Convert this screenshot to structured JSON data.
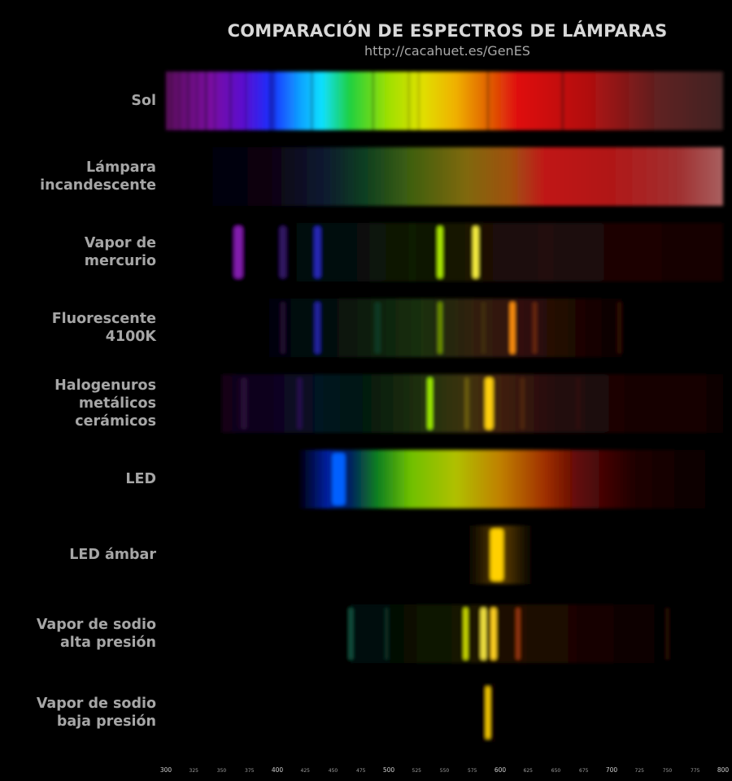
{
  "header": {
    "title": "COMPARACIÓN DE ESPECTROS DE LÁMPARAS",
    "subtitle": "http://cacahuet.es/GenES"
  },
  "axis": {
    "min": 300,
    "max": 800,
    "ticks": [
      300,
      325,
      350,
      375,
      400,
      425,
      450,
      475,
      500,
      525,
      550,
      575,
      600,
      625,
      650,
      675,
      700,
      725,
      750,
      775,
      800
    ],
    "major_ticks": [
      300,
      400,
      500,
      600,
      700,
      800
    ]
  },
  "colors": {
    "background": "#000000",
    "label": "#a6a6a6",
    "title": "#d8d8d8"
  },
  "spectra": [
    {
      "id": "sol",
      "label": [
        "Sol"
      ],
      "band": [
        300,
        800
      ],
      "gradient": [
        [
          300,
          "#5a0a5a"
        ],
        [
          340,
          "#7a10a0"
        ],
        [
          370,
          "#5a10d0"
        ],
        [
          395,
          "#1830ff"
        ],
        [
          420,
          "#10a0ff"
        ],
        [
          440,
          "#10e0ff"
        ],
        [
          465,
          "#20d040"
        ],
        [
          500,
          "#a0e000"
        ],
        [
          530,
          "#e0e000"
        ],
        [
          560,
          "#f0b000"
        ],
        [
          590,
          "#e06000"
        ],
        [
          615,
          "#e01010"
        ],
        [
          680,
          "#b01010"
        ],
        [
          740,
          "#602020"
        ],
        [
          800,
          "#402020"
        ]
      ],
      "lines": [
        {
          "wl": 305,
          "w": 1,
          "dark": true
        },
        {
          "wl": 312,
          "w": 1,
          "dark": true
        },
        {
          "wl": 320,
          "w": 1.5,
          "dark": true
        },
        {
          "wl": 328,
          "w": 1,
          "dark": true
        },
        {
          "wl": 336,
          "w": 2,
          "dark": true
        },
        {
          "wl": 344,
          "w": 1,
          "dark": true
        },
        {
          "wl": 358,
          "w": 1.5,
          "dark": true
        },
        {
          "wl": 372,
          "w": 1,
          "dark": true
        },
        {
          "wl": 394,
          "w": 2,
          "dark": true
        },
        {
          "wl": 397,
          "w": 1.5,
          "dark": true
        },
        {
          "wl": 431,
          "w": 1.5,
          "dark": true
        },
        {
          "wl": 486,
          "w": 1.5,
          "dark": true
        },
        {
          "wl": 518,
          "w": 1,
          "dark": true
        },
        {
          "wl": 527,
          "w": 1,
          "dark": true
        },
        {
          "wl": 589,
          "w": 1.5,
          "dark": true
        },
        {
          "wl": 656,
          "w": 2,
          "dark": true
        }
      ]
    },
    {
      "id": "incandescente",
      "label": [
        "Lámpara",
        "incandescente"
      ],
      "band": [
        300,
        800
      ],
      "gradient": [
        [
          300,
          "#000000"
        ],
        [
          390,
          "#08000e"
        ],
        [
          440,
          "#081830"
        ],
        [
          480,
          "#104020"
        ],
        [
          520,
          "#406010"
        ],
        [
          570,
          "#806808"
        ],
        [
          610,
          "#a05010"
        ],
        [
          640,
          "#c01818"
        ],
        [
          700,
          "#b01818"
        ],
        [
          760,
          "#a03030"
        ],
        [
          800,
          "#a86060"
        ]
      ],
      "lines": []
    },
    {
      "id": "mercurio",
      "label": [
        "Vapor de",
        "mercurio"
      ],
      "band": [
        355,
        800
      ],
      "gradient": [
        [
          355,
          "#040004"
        ],
        [
          450,
          "#050a08"
        ],
        [
          520,
          "#0a1a06"
        ],
        [
          570,
          "#1a1406"
        ],
        [
          640,
          "#200808"
        ],
        [
          720,
          "#1c0606"
        ],
        [
          800,
          "#140404"
        ]
      ],
      "lines": [
        {
          "wl": 365,
          "w": 10,
          "color": "#9020c0",
          "a": 0.9
        },
        {
          "wl": 405,
          "w": 8,
          "color": "#5020a0",
          "a": 0.6
        },
        {
          "wl": 436,
          "w": 8,
          "color": "#3030e0",
          "a": 0.8
        },
        {
          "wl": 546,
          "w": 6,
          "color": "#b0f000",
          "a": 1
        },
        {
          "wl": 578,
          "w": 7,
          "color": "#f8f040",
          "a": 1
        }
      ]
    },
    {
      "id": "fluorescente",
      "label": [
        "Fluorescente",
        "4100K"
      ],
      "band": [
        360,
        720
      ],
      "gradient": [
        [
          360,
          "#000000"
        ],
        [
          440,
          "#050a10"
        ],
        [
          485,
          "#0a2008"
        ],
        [
          530,
          "#1a3008"
        ],
        [
          575,
          "#302008"
        ],
        [
          620,
          "#301008"
        ],
        [
          680,
          "#180404"
        ],
        [
          720,
          "#000000"
        ]
      ],
      "lines": [
        {
          "wl": 405,
          "w": 6,
          "color": "#301040",
          "a": 0.7
        },
        {
          "wl": 436,
          "w": 7,
          "color": "#2828c0",
          "a": 0.8
        },
        {
          "wl": 490,
          "w": 8,
          "color": "#104830",
          "a": 0.6
        },
        {
          "wl": 546,
          "w": 5,
          "color": "#90c000",
          "a": 0.7
        },
        {
          "wl": 585,
          "w": 4,
          "color": "#504010",
          "a": 0.6
        },
        {
          "wl": 611,
          "w": 6,
          "color": "#ff9010",
          "a": 1
        },
        {
          "wl": 631,
          "w": 5,
          "color": "#803008",
          "a": 0.7
        },
        {
          "wl": 707,
          "w": 5,
          "color": "#401008",
          "a": 0.7
        }
      ]
    },
    {
      "id": "halogenuros",
      "label": [
        "Halogenuros",
        "metálicos",
        "cerámicos"
      ],
      "band": [
        350,
        800
      ],
      "gradient": [
        [
          350,
          "#120418"
        ],
        [
          400,
          "#100420"
        ],
        [
          440,
          "#041420"
        ],
        [
          480,
          "#041a10"
        ],
        [
          530,
          "#203008"
        ],
        [
          575,
          "#403008"
        ],
        [
          600,
          "#402008"
        ],
        [
          650,
          "#240808"
        ],
        [
          720,
          "#180606"
        ],
        [
          800,
          "#100404"
        ]
      ],
      "lines": [
        {
          "wl": 370,
          "w": 8,
          "color": "#301040",
          "a": 0.7
        },
        {
          "wl": 420,
          "w": 6,
          "color": "#301060",
          "a": 0.7
        },
        {
          "wl": 537,
          "w": 6,
          "color": "#a0f000",
          "a": 1
        },
        {
          "wl": 570,
          "w": 5,
          "color": "#807010",
          "a": 0.7
        },
        {
          "wl": 590,
          "w": 10,
          "color": "#ffd010",
          "a": 1
        },
        {
          "wl": 620,
          "w": 5,
          "color": "#603010",
          "a": 0.6
        },
        {
          "wl": 670,
          "w": 4,
          "color": "#401008",
          "a": 0.6
        }
      ]
    },
    {
      "id": "led",
      "label": [
        "LED"
      ],
      "band": [
        420,
        800
      ],
      "gradient": [
        [
          420,
          "#000010"
        ],
        [
          445,
          "#0020a0"
        ],
        [
          465,
          "#002060"
        ],
        [
          490,
          "#108020"
        ],
        [
          520,
          "#70c000"
        ],
        [
          560,
          "#b0c000"
        ],
        [
          600,
          "#c08000"
        ],
        [
          640,
          "#a03000"
        ],
        [
          670,
          "#600808"
        ],
        [
          720,
          "#200404"
        ],
        [
          800,
          "#000000"
        ]
      ],
      "lines": [
        {
          "wl": 455,
          "w": 16,
          "color": "#0060ff",
          "a": 1
        }
      ]
    },
    {
      "id": "led-ambar",
      "label": [
        "LED ámbar"
      ],
      "band": [
        570,
        630
      ],
      "gradient": [
        [
          570,
          "#000000"
        ],
        [
          585,
          "#302000"
        ],
        [
          600,
          "#604000"
        ],
        [
          615,
          "#302000"
        ],
        [
          630,
          "#000000"
        ]
      ],
      "lines": [
        {
          "wl": 597,
          "w": 16,
          "color": "#ffd000",
          "a": 1
        }
      ]
    },
    {
      "id": "sodio-alta",
      "label": [
        "Vapor de sodio",
        "alta presión"
      ],
      "band": [
        440,
        760
      ],
      "gradient": [
        [
          440,
          "#000000"
        ],
        [
          480,
          "#020a0a"
        ],
        [
          540,
          "#0a1400"
        ],
        [
          575,
          "#1a1400"
        ],
        [
          620,
          "#200c00"
        ],
        [
          680,
          "#180400"
        ],
        [
          760,
          "#000000"
        ]
      ],
      "lines": [
        {
          "wl": 466,
          "w": 5,
          "color": "#208060",
          "a": 0.6
        },
        {
          "wl": 498,
          "w": 4,
          "color": "#105040",
          "a": 0.5
        },
        {
          "wl": 569,
          "w": 5,
          "color": "#d0e000",
          "a": 1
        },
        {
          "wl": 585,
          "w": 7,
          "color": "#f0e040",
          "a": 1
        },
        {
          "wl": 594,
          "w": 7,
          "color": "#ffd020",
          "a": 1
        },
        {
          "wl": 616,
          "w": 5,
          "color": "#b04010",
          "a": 0.8
        },
        {
          "wl": 750,
          "w": 4,
          "color": "#401008",
          "a": 0.6
        }
      ]
    },
    {
      "id": "sodio-baja",
      "label": [
        "Vapor de sodio",
        "baja presión"
      ],
      "band": [
        580,
        600
      ],
      "gradient": [
        [
          580,
          "#000000"
        ],
        [
          589,
          "#100a00"
        ],
        [
          600,
          "#000000"
        ]
      ],
      "lines": [
        {
          "wl": 589,
          "w": 5,
          "color": "#ffd000",
          "a": 1
        }
      ]
    }
  ]
}
